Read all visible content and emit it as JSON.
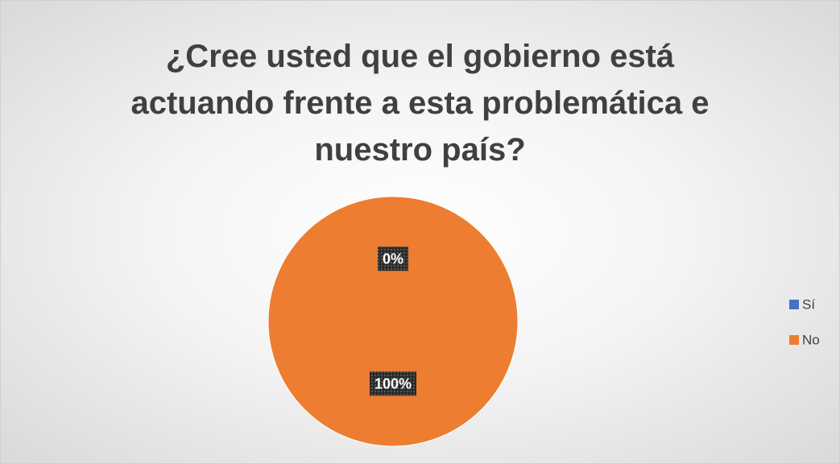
{
  "chart_data": {
    "type": "pie",
    "title": "¿Cree usted que el gobierno está actuando frente a esta problemática e nuestro país?",
    "categories": [
      "Sí",
      "No"
    ],
    "values": [
      0,
      100
    ],
    "value_labels": [
      "0%",
      "100%"
    ],
    "colors": [
      "#4472c4",
      "#ed7d31"
    ],
    "legend": "right"
  }
}
